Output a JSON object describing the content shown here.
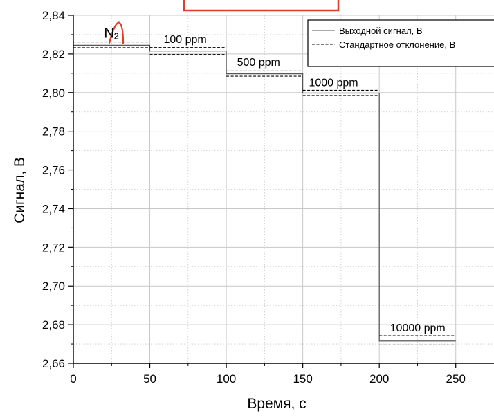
{
  "chart_data": {
    "type": "line",
    "xlabel": "Время, с",
    "ylabel": "Сигнал, В",
    "xlim": [
      0,
      275
    ],
    "ylim": [
      2.66,
      2.84
    ],
    "x_ticks": [
      0,
      50,
      100,
      150,
      200,
      250
    ],
    "x_tick_labels": [
      "0",
      "50",
      "100",
      "150",
      "200",
      "250"
    ],
    "y_ticks": [
      2.66,
      2.68,
      2.7,
      2.72,
      2.74,
      2.76,
      2.78,
      2.8,
      2.82,
      2.84
    ],
    "y_tick_labels": [
      "2,66",
      "2,68",
      "2,70",
      "2,72",
      "2,74",
      "2,76",
      "2,78",
      "2,80",
      "2,82",
      "2,84"
    ],
    "grid": true,
    "legend_position": "top-right",
    "series": [
      {
        "name": "Выходной сигнал, В",
        "style": "solid",
        "x": [
          0,
          50,
          50,
          100,
          100,
          150,
          150,
          200,
          200,
          250
        ],
        "y": [
          2.8245,
          2.8245,
          2.8215,
          2.8215,
          2.8097,
          2.8097,
          2.7997,
          2.7997,
          2.6715,
          2.6715
        ]
      },
      {
        "name": "Стандартное отклонение, В",
        "style": "dashed",
        "segments": [
          {
            "x": [
              0,
              50
            ],
            "y": [
              2.8262,
              2.8262
            ]
          },
          {
            "x": [
              0,
              50
            ],
            "y": [
              2.8232,
              2.8232
            ]
          },
          {
            "x": [
              50,
              100
            ],
            "y": [
              2.8233,
              2.8233
            ]
          },
          {
            "x": [
              50,
              100
            ],
            "y": [
              2.8197,
              2.8197
            ]
          },
          {
            "x": [
              100,
              150
            ],
            "y": [
              2.8112,
              2.8112
            ]
          },
          {
            "x": [
              100,
              150
            ],
            "y": [
              2.8085,
              2.8085
            ]
          },
          {
            "x": [
              150,
              200
            ],
            "y": [
              2.8012,
              2.8012
            ]
          },
          {
            "x": [
              150,
              200
            ],
            "y": [
              2.7985,
              2.7985
            ]
          },
          {
            "x": [
              200,
              250
            ],
            "y": [
              2.6743,
              2.6743
            ]
          },
          {
            "x": [
              200,
              250
            ],
            "y": [
              2.6695,
              2.6695
            ]
          }
        ]
      }
    ],
    "annotations": [
      {
        "text": "N",
        "x": 20,
        "y": 2.8283
      },
      {
        "text": "2",
        "x": 26.5,
        "y": 2.8276
      },
      {
        "text": "100 ppm",
        "x": 59,
        "y": 2.8257
      },
      {
        "text": "500 ppm",
        "x": 107,
        "y": 2.8138
      },
      {
        "text": "1000 ppm",
        "x": 154,
        "y": 2.8033
      },
      {
        "text": "10000 ppm",
        "x": 207,
        "y": 2.6765
      }
    ]
  },
  "colors": {
    "line": "#000000",
    "grid": "#c8c8c8",
    "axis": "#000000",
    "highlight": "#e03c28"
  }
}
